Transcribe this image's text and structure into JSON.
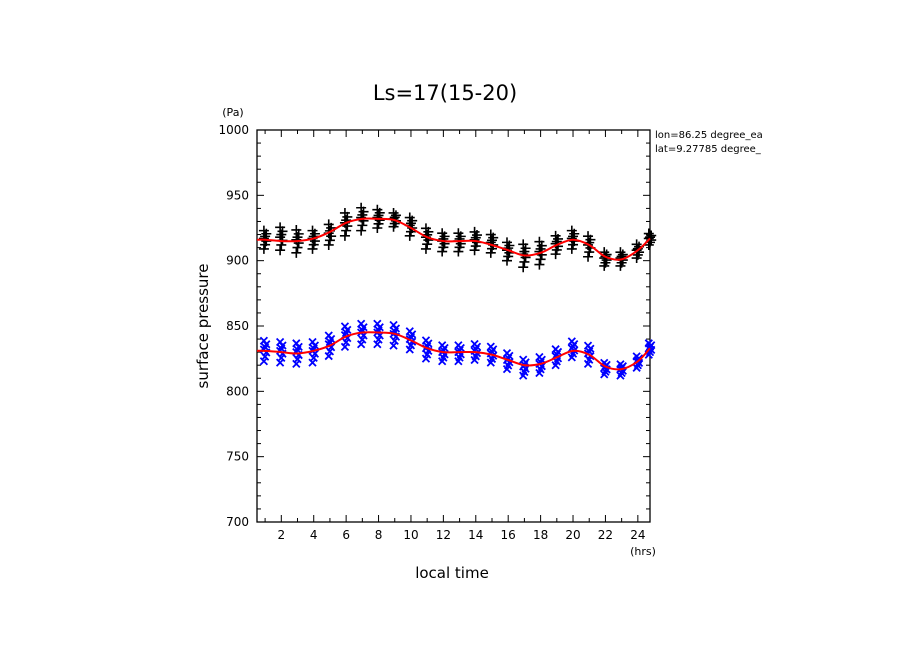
{
  "chart_data": {
    "type": "scatter",
    "title": "Ls=17(15-20)",
    "xlabel": "local time",
    "ylabel": "surface pressure",
    "x_unit": "(hrs)",
    "y_unit": "(Pa)",
    "xlim": [
      0.5,
      24.75
    ],
    "ylim": [
      700,
      1000
    ],
    "x_ticks": [
      2,
      4,
      6,
      8,
      10,
      12,
      14,
      16,
      18,
      20,
      22,
      24
    ],
    "y_ticks": [
      700,
      750,
      800,
      850,
      900,
      950,
      1000
    ],
    "annotations": [
      "lon=86.25 degree_ea",
      "lat=9.27785 degree_"
    ],
    "grid": false,
    "colors": {
      "black_series": "#000000",
      "blue_series": "#0000ff",
      "fit": "#ff0000"
    },
    "series": [
      {
        "marker": "plus",
        "color": "#000000",
        "x": [
          1,
          2,
          3,
          4,
          5,
          6,
          7,
          8,
          9,
          10,
          11,
          12,
          13,
          14,
          15,
          16,
          17,
          18,
          19,
          20,
          21,
          22,
          23,
          24,
          24.75
        ],
        "y": [
          917,
          918,
          916,
          917,
          921,
          929,
          933,
          933,
          932,
          927,
          918,
          915,
          915,
          916,
          914,
          908,
          905,
          907,
          913,
          917,
          912,
          902,
          902,
          908,
          917
        ],
        "spread": [
          8,
          10,
          10,
          8,
          9,
          10,
          10,
          8,
          6,
          8,
          9,
          8,
          8,
          8,
          8,
          8,
          10,
          10,
          8,
          8,
          9,
          6,
          6,
          6,
          5
        ]
      },
      {
        "marker": "x",
        "color": "#0000ff",
        "x": [
          1,
          2,
          3,
          4,
          5,
          6,
          7,
          8,
          9,
          10,
          11,
          12,
          13,
          14,
          15,
          16,
          17,
          18,
          19,
          20,
          21,
          22,
          23,
          24,
          24.75
        ],
        "y": [
          832,
          831,
          830,
          831,
          836,
          843,
          845,
          845,
          844,
          840,
          833,
          830,
          830,
          831,
          829,
          824,
          819,
          821,
          827,
          833,
          829,
          818,
          817,
          823,
          833
        ],
        "spread": [
          9,
          9,
          9,
          9,
          9,
          9,
          9,
          9,
          9,
          8,
          8,
          7,
          7,
          7,
          7,
          7,
          7,
          7,
          7,
          7,
          8,
          5,
          5,
          5,
          5
        ]
      }
    ],
    "fit_lines": [
      {
        "color": "#ff0000",
        "x": [
          0.5,
          1,
          2,
          3,
          4,
          5,
          6,
          7,
          8,
          9,
          10,
          11,
          12,
          13,
          14,
          15,
          16,
          17,
          18,
          19,
          20,
          21,
          22,
          23,
          24,
          24.75
        ],
        "y": [
          916,
          916,
          915,
          915,
          917,
          922,
          929,
          932,
          932,
          931,
          925,
          918,
          915,
          915,
          915,
          912,
          908,
          904,
          906,
          912,
          916,
          912,
          903,
          901,
          908,
          917
        ]
      },
      {
        "color": "#ff0000",
        "x": [
          0.5,
          1,
          2,
          3,
          4,
          5,
          6,
          7,
          8,
          9,
          10,
          11,
          12,
          13,
          14,
          15,
          16,
          17,
          18,
          19,
          20,
          21,
          22,
          23,
          24,
          24.75
        ],
        "y": [
          831,
          831,
          830,
          829,
          831,
          835,
          842,
          845,
          845,
          844,
          839,
          833,
          830,
          830,
          830,
          828,
          824,
          820,
          821,
          826,
          831,
          828,
          819,
          817,
          823,
          833
        ]
      }
    ]
  }
}
